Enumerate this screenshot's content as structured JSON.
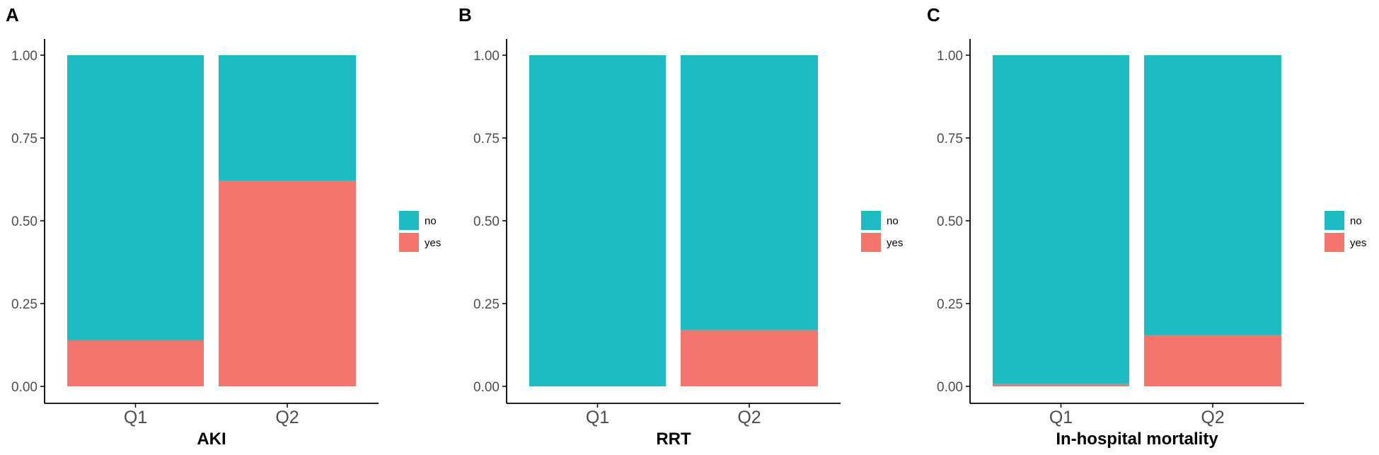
{
  "chart_data": [
    {
      "panel": "A",
      "type": "bar",
      "stacked": true,
      "categories": [
        "Q1",
        "Q2"
      ],
      "series": [
        {
          "name": "yes",
          "values": [
            0.14,
            0.62
          ]
        },
        {
          "name": "no",
          "values": [
            0.86,
            0.38
          ]
        }
      ],
      "xlabel": "AKI",
      "ylabel": "",
      "ylim": [
        0,
        1
      ],
      "yticks": [
        "0.00",
        "0.25",
        "0.50",
        "0.75",
        "1.00"
      ],
      "legend": {
        "placement": "right",
        "entries": [
          "no",
          "yes"
        ]
      }
    },
    {
      "panel": "B",
      "type": "bar",
      "stacked": true,
      "categories": [
        "Q1",
        "Q2"
      ],
      "series": [
        {
          "name": "yes",
          "values": [
            0.0,
            0.17
          ]
        },
        {
          "name": "no",
          "values": [
            1.0,
            0.83
          ]
        }
      ],
      "xlabel": "RRT",
      "ylabel": "",
      "ylim": [
        0,
        1
      ],
      "yticks": [
        "0.00",
        "0.25",
        "0.50",
        "0.75",
        "1.00"
      ],
      "legend": {
        "placement": "right",
        "entries": [
          "no",
          "yes"
        ]
      }
    },
    {
      "panel": "C",
      "type": "bar",
      "stacked": true,
      "categories": [
        "Q1",
        "Q2"
      ],
      "series": [
        {
          "name": "yes",
          "values": [
            0.007,
            0.155
          ]
        },
        {
          "name": "no",
          "values": [
            0.993,
            0.845
          ]
        }
      ],
      "xlabel": "In-hospital mortality",
      "ylabel": "",
      "ylim": [
        0,
        1
      ],
      "yticks": [
        "0.00",
        "0.25",
        "0.50",
        "0.75",
        "1.00"
      ],
      "legend": {
        "placement": "right",
        "entries": [
          "no",
          "yes"
        ]
      }
    }
  ],
  "colors": {
    "no": "#1cbcc2",
    "yes": "#f4756d",
    "axis": "#000000",
    "tick_text": "#4d4d4d"
  }
}
